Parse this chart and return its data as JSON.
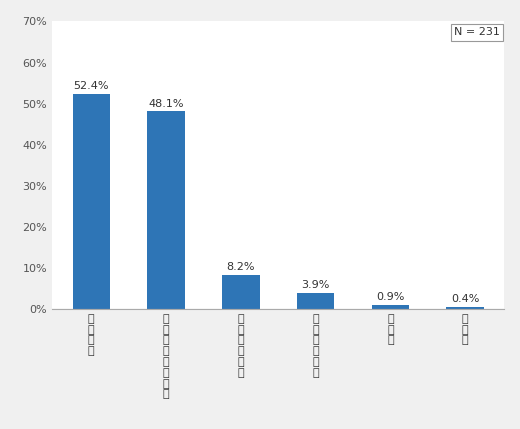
{
  "categories_raw": [
    "証券会社",
    "銀行等の金融機関",
    "投資信託会社",
    "ゆうちょ銀行",
    "その他",
    "無回答"
  ],
  "values": [
    52.4,
    48.1,
    8.2,
    3.9,
    0.9,
    0.4
  ],
  "bar_color": "#2e75b6",
  "ylim": [
    0,
    70
  ],
  "yticks": [
    0,
    10,
    20,
    30,
    40,
    50,
    60,
    70
  ],
  "annotation_format": [
    "52.4%",
    "48.1%",
    "8.2%",
    "3.9%",
    "0.9%",
    "0.4%"
  ],
  "n_label": "N = 231",
  "background_color": "#f0f0f0",
  "plot_bg_color": "#ffffff",
  "font_size_ticks": 8,
  "font_size_annotation": 8,
  "font_size_n": 8,
  "bar_width": 0.5
}
